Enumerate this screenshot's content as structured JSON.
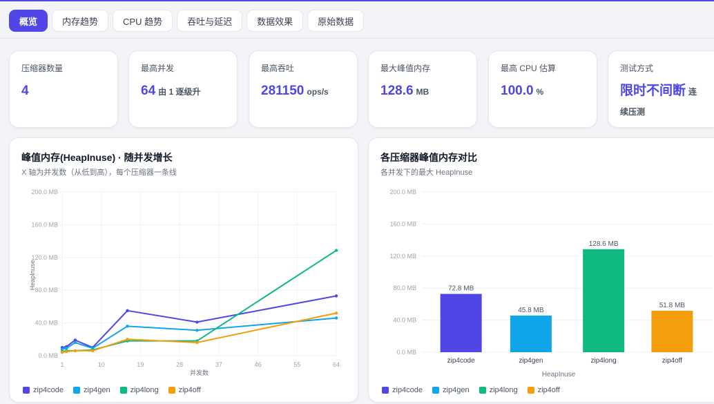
{
  "colors": {
    "accent": "#4f46e5",
    "zip4code": "#4f46e5",
    "zip4gen": "#0ea5e9",
    "zip4long": "#10b981",
    "zip4off": "#f59e0b"
  },
  "tabs": [
    {
      "label": "概览",
      "active": true
    },
    {
      "label": "内存趋势",
      "active": false
    },
    {
      "label": "CPU 趋势",
      "active": false
    },
    {
      "label": "吞吐与延迟",
      "active": false
    },
    {
      "label": "数据效果",
      "active": false
    },
    {
      "label": "原始数据",
      "active": false
    }
  ],
  "stats": [
    {
      "label": "压缩器数量",
      "value": "4",
      "unit": ""
    },
    {
      "label": "最高并发",
      "value": "64",
      "unit": "由 1 逐级升"
    },
    {
      "label": "最高吞吐",
      "value": "281150",
      "unit": "ops/s"
    },
    {
      "label": "最大峰值内存",
      "value": "128.6",
      "unit": "MB"
    },
    {
      "label": "最高 CPU 估算",
      "value": "100.0",
      "unit": "%"
    },
    {
      "label": "测试方式",
      "value": "限时不间断",
      "unit": "连续压测"
    }
  ],
  "line_panel": {
    "title": "峰值内存(HeapInuse) · 随并发增长",
    "subtitle": "X 轴为并发数（从低到高），每个压缩器一条线"
  },
  "bar_panel": {
    "title": "各压缩器峰值内存对比",
    "subtitle": "各并发下的最大 HeapInuse"
  },
  "chart_data": [
    {
      "type": "line",
      "xlabel": "并发数",
      "ylabel": "HeapInuse",
      "xlim": [
        1,
        64
      ],
      "ylim": [
        0,
        200
      ],
      "x_ticks": [
        "1",
        "10",
        "19",
        "28",
        "37",
        "46",
        "55",
        "64"
      ],
      "y_ticks": [
        "0.0 MB",
        "40.0 MB",
        "80.0 MB",
        "120.0 MB",
        "160.0 MB",
        "200.0 MB"
      ],
      "x": [
        1,
        2,
        4,
        8,
        16,
        32,
        64
      ],
      "series": [
        {
          "name": "zip4code",
          "values": [
            10,
            11,
            19,
            10,
            55,
            41,
            73
          ]
        },
        {
          "name": "zip4gen",
          "values": [
            8,
            9,
            16,
            9,
            36,
            31,
            46
          ]
        },
        {
          "name": "zip4long",
          "values": [
            5,
            6,
            6,
            7,
            18,
            18,
            128.6
          ]
        },
        {
          "name": "zip4off",
          "values": [
            4,
            5,
            6,
            6,
            20,
            16,
            52
          ]
        }
      ]
    },
    {
      "type": "bar",
      "xlabel": "HeapInuse",
      "ylim": [
        0,
        200
      ],
      "y_ticks": [
        "0.0 MB",
        "40.0 MB",
        "80.0 MB",
        "120.0 MB",
        "160.0 MB",
        "200.0 MB"
      ],
      "categories": [
        "zip4code",
        "zip4gen",
        "zip4long",
        "zip4off"
      ],
      "values": [
        72.8,
        45.8,
        128.6,
        51.8
      ],
      "value_labels": [
        "72.8 MB",
        "45.8 MB",
        "128.6 MB",
        "51.8 MB"
      ]
    }
  ]
}
